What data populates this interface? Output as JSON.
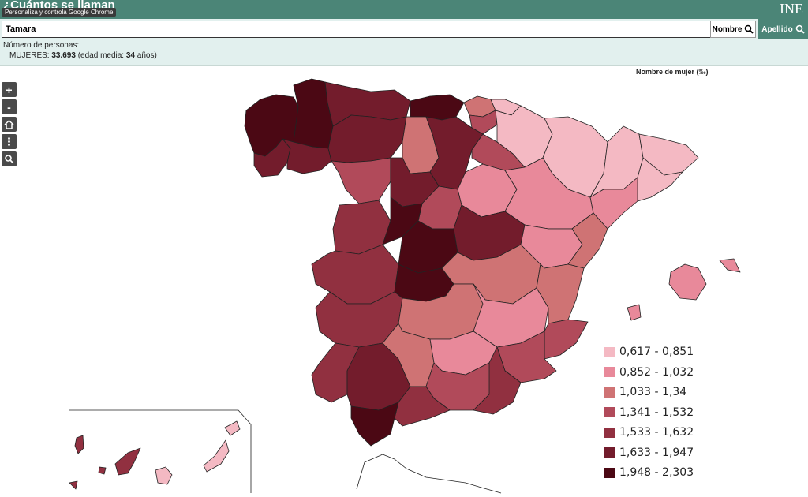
{
  "header": {
    "app_title": "¿Cuántos se llaman",
    "tooltip": "Personaliza y controla Google Chrome",
    "logo": "INE"
  },
  "search": {
    "value": "Tamara",
    "nombre_label": "Nombre",
    "apellido_label": "Apellido"
  },
  "info": {
    "label": "Número de personas:",
    "gender": "MUJERES:",
    "count": "33.693",
    "edad_prefix": "(edad media:",
    "edad": "34",
    "edad_suffix": "años)"
  },
  "controls": {
    "zoom_in": "+",
    "zoom_out": "-"
  },
  "icons": [
    "plus-icon",
    "minus-icon",
    "home-icon",
    "more-icon",
    "search-icon"
  ],
  "map": {
    "title": "Nombre de mujer (‰)"
  },
  "legend": [
    {
      "label": "0,617 - 0,851",
      "color": "#f4b9c3"
    },
    {
      "label": "0,852 - 1,032",
      "color": "#e8899a"
    },
    {
      "label": "1,033 - 1,34",
      "color": "#cf7374"
    },
    {
      "label": "1,341 - 1,532",
      "color": "#b14a5a"
    },
    {
      "label": "1,533 - 1,632",
      "color": "#913040"
    },
    {
      "label": "1,633 - 1,947",
      "color": "#731c2c"
    },
    {
      "label": "1,948 - 2,303",
      "color": "#4b0814"
    }
  ],
  "colors": {
    "header_bg": "#4b8577",
    "info_bg": "#e2f0ee"
  }
}
